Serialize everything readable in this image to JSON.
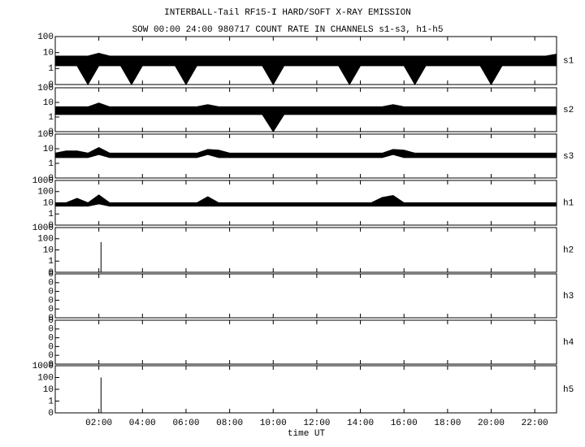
{
  "title": "INTERBALL-Tail RF15-I HARD/SOFT X-RAY EMISSION",
  "subtitle": "SOW 00:00 24:00 980717  COUNT RATE IN CHANNELS s1-s3, h1-h5",
  "x_axis": {
    "label": "time UT",
    "xlim": [
      0,
      23
    ],
    "xticks": [
      {
        "value": 2,
        "label": "02:00"
      },
      {
        "value": 4,
        "label": "04:00"
      },
      {
        "value": 6,
        "label": "06:00"
      },
      {
        "value": 8,
        "label": "08:00"
      },
      {
        "value": 10,
        "label": "10:00"
      },
      {
        "value": 12,
        "label": "12:00"
      },
      {
        "value": 14,
        "label": "14:00"
      },
      {
        "value": 16,
        "label": "16:00"
      },
      {
        "value": 18,
        "label": "18:00"
      },
      {
        "value": 20,
        "label": "20:00"
      },
      {
        "value": 22,
        "label": "22:00"
      }
    ]
  },
  "chart_data": [
    {
      "type": "band",
      "name": "s1",
      "log": true,
      "ylim": [
        0.1,
        100
      ],
      "yticks": [
        100,
        10,
        1,
        {
          "value": 0.1,
          "label": "0"
        }
      ],
      "x": [
        0,
        0.5,
        1,
        1.5,
        2,
        2.5,
        3,
        3.5,
        4,
        4.5,
        5,
        5.5,
        6,
        6.5,
        7,
        7.5,
        8,
        8.5,
        9,
        9.5,
        10,
        10.5,
        11,
        11.5,
        12,
        12.5,
        13,
        13.5,
        14,
        14.5,
        15,
        15.5,
        16,
        16.5,
        17,
        17.5,
        18,
        18.5,
        19,
        19.5,
        20,
        20.5,
        21,
        21.5,
        22,
        22.5,
        23
      ],
      "values": [
        6,
        6,
        6,
        6,
        9,
        6,
        6,
        6,
        6,
        6,
        6,
        6,
        6,
        6,
        6,
        6,
        6,
        6,
        6,
        6,
        6,
        6,
        6,
        6,
        6,
        6,
        6,
        6,
        6,
        6,
        6,
        6,
        6,
        6,
        6,
        6,
        6,
        6,
        6,
        6,
        6,
        6,
        6,
        6,
        6,
        6,
        8
      ],
      "low": [
        1.5,
        1.5,
        1.5,
        0.1,
        1.5,
        1.5,
        1.5,
        0.1,
        1.5,
        1.5,
        1.5,
        1.5,
        0.1,
        1.5,
        1.5,
        1.5,
        1.5,
        1.5,
        1.5,
        1.5,
        0.1,
        1.5,
        1.5,
        1.5,
        1.5,
        1.5,
        1.5,
        0.1,
        1.5,
        1.5,
        1.5,
        1.5,
        1.5,
        0.1,
        1.5,
        1.5,
        1.5,
        1.5,
        1.5,
        1.5,
        0.1,
        1.5,
        1.5,
        1.5,
        1.5,
        1.5,
        1.5
      ]
    },
    {
      "type": "band",
      "name": "s2",
      "log": true,
      "ylim": [
        0.1,
        100
      ],
      "yticks": [
        100,
        10,
        1,
        {
          "value": 0.1,
          "label": "0"
        }
      ],
      "x": [
        0,
        0.5,
        1,
        1.5,
        2,
        2.5,
        3,
        3.5,
        4,
        4.5,
        5,
        5.5,
        6,
        6.5,
        7,
        7.5,
        8,
        8.5,
        9,
        9.5,
        10,
        10.5,
        11,
        11.5,
        12,
        12.5,
        13,
        13.5,
        14,
        14.5,
        15,
        15.5,
        16,
        16.5,
        17,
        17.5,
        18,
        18.5,
        19,
        19.5,
        20,
        20.5,
        21,
        21.5,
        22,
        22.5,
        23
      ],
      "values": [
        5,
        5,
        5,
        5,
        9,
        5,
        5,
        5,
        5,
        5,
        5,
        5,
        5,
        5,
        7,
        5,
        5,
        5,
        5,
        5,
        5,
        5,
        5,
        5,
        5,
        5,
        5,
        5,
        5,
        5,
        5,
        7,
        5,
        5,
        5,
        5,
        5,
        5,
        5,
        5,
        5,
        5,
        5,
        5,
        5,
        5,
        5
      ],
      "low": [
        1.5,
        1.5,
        1.5,
        1.5,
        1.5,
        1.5,
        1.5,
        1.5,
        1.5,
        1.5,
        1.5,
        1.5,
        1.5,
        1.5,
        1.5,
        1.5,
        1.5,
        1.5,
        1.5,
        1.5,
        0.1,
        1.5,
        1.5,
        1.5,
        1.5,
        1.5,
        1.5,
        1.5,
        1.5,
        1.5,
        1.5,
        1.5,
        1.5,
        1.5,
        1.5,
        1.5,
        1.5,
        1.5,
        1.5,
        1.5,
        1.5,
        1.5,
        1.5,
        1.5,
        1.5,
        1.5,
        1.5
      ]
    },
    {
      "type": "band",
      "name": "s3",
      "log": true,
      "ylim": [
        0.1,
        100
      ],
      "yticks": [
        100,
        10,
        1,
        {
          "value": 0.1,
          "label": "0"
        }
      ],
      "x": [
        0,
        0.5,
        1,
        1.5,
        2,
        2.5,
        3,
        3.5,
        4,
        4.5,
        5,
        5.5,
        6,
        6.5,
        7,
        7.5,
        8,
        8.5,
        9,
        9.5,
        10,
        10.5,
        11,
        11.5,
        12,
        12.5,
        13,
        13.5,
        14,
        14.5,
        15,
        15.5,
        16,
        16.5,
        17,
        17.5,
        18,
        18.5,
        19,
        19.5,
        20,
        20.5,
        21,
        21.5,
        22,
        22.5,
        23
      ],
      "values": [
        5,
        7,
        7,
        5,
        12,
        5,
        5,
        5,
        5,
        5,
        5,
        5,
        5,
        5,
        9,
        8,
        5,
        5,
        5,
        5,
        5,
        5,
        5,
        5,
        5,
        5,
        5,
        5,
        5,
        5,
        5,
        9,
        8,
        5,
        5,
        5,
        5,
        5,
        5,
        5,
        5,
        5,
        5,
        5,
        5,
        5,
        5
      ],
      "low": [
        2.5,
        2.5,
        2.5,
        2.5,
        4,
        2.5,
        2.5,
        2.5,
        2.5,
        2.5,
        2.5,
        2.5,
        2.5,
        2.5,
        4,
        2.5,
        2.5,
        2.5,
        2.5,
        2.5,
        2.5,
        2.5,
        2.5,
        2.5,
        2.5,
        2.5,
        2.5,
        2.5,
        2.5,
        2.5,
        2.5,
        4,
        2.5,
        2.5,
        2.5,
        2.5,
        2.5,
        2.5,
        2.5,
        2.5,
        2.5,
        2.5,
        2.5,
        2.5,
        2.5,
        2.5,
        2.5
      ]
    },
    {
      "type": "band",
      "name": "h1",
      "log": true,
      "ylim": [
        0.1,
        1000
      ],
      "yticks": [
        1000,
        100,
        10,
        1,
        {
          "value": 0.1,
          "label": "0"
        }
      ],
      "x": [
        0,
        0.5,
        1,
        1.5,
        2,
        2.5,
        3,
        3.5,
        4,
        4.5,
        5,
        5.5,
        6,
        6.5,
        7,
        7.5,
        8,
        8.5,
        9,
        9.5,
        10,
        10.5,
        11,
        11.5,
        12,
        12.5,
        13,
        13.5,
        14,
        14.5,
        15,
        15.5,
        16,
        16.5,
        17,
        17.5,
        18,
        18.5,
        19,
        19.5,
        20,
        20.5,
        21,
        21.5,
        22,
        22.5,
        23
      ],
      "values": [
        10,
        10,
        25,
        10,
        50,
        10,
        10,
        10,
        10,
        10,
        10,
        10,
        10,
        10,
        35,
        10,
        10,
        10,
        10,
        10,
        10,
        10,
        10,
        10,
        10,
        10,
        10,
        10,
        10,
        10,
        30,
        45,
        10,
        10,
        10,
        10,
        10,
        10,
        10,
        10,
        10,
        10,
        10,
        10,
        10,
        10,
        10
      ],
      "low": [
        5,
        5,
        5,
        5,
        8,
        5,
        5,
        5,
        5,
        5,
        5,
        5,
        5,
        5,
        5,
        5,
        5,
        5,
        5,
        5,
        5,
        5,
        5,
        5,
        5,
        5,
        5,
        5,
        5,
        5,
        5,
        5,
        5,
        5,
        5,
        5,
        5,
        5,
        5,
        5,
        5,
        5,
        5,
        5,
        5,
        5,
        5
      ]
    },
    {
      "type": "spike",
      "name": "h2",
      "log": true,
      "ylim": [
        0.1,
        1000
      ],
      "yticks": [
        1000,
        100,
        10,
        1,
        {
          "value": 0.1,
          "label": "0"
        }
      ],
      "x": [
        2.1
      ],
      "values": [
        50
      ]
    },
    {
      "type": "empty",
      "name": "h3",
      "log": false,
      "ylim": [
        0,
        1
      ],
      "yticks": [
        0,
        {
          "value": 0.2,
          "label": "0"
        },
        {
          "value": 0.4,
          "label": "0"
        },
        {
          "value": 0.6,
          "label": "0"
        },
        {
          "value": 0.8,
          "label": "0"
        },
        {
          "value": 1,
          "label": "0"
        }
      ]
    },
    {
      "type": "empty",
      "name": "h4",
      "log": false,
      "ylim": [
        0,
        1
      ],
      "yticks": [
        0,
        {
          "value": 0.2,
          "label": "0"
        },
        {
          "value": 0.4,
          "label": "0"
        },
        {
          "value": 0.6,
          "label": "0"
        },
        {
          "value": 0.8,
          "label": "0"
        },
        {
          "value": 1,
          "label": "0"
        }
      ]
    },
    {
      "type": "spike",
      "name": "h5",
      "log": true,
      "ylim": [
        0.1,
        1000
      ],
      "yticks": [
        1000,
        100,
        10,
        1,
        {
          "value": 0.1,
          "label": "0"
        }
      ],
      "x": [
        2.1
      ],
      "values": [
        100
      ]
    }
  ]
}
